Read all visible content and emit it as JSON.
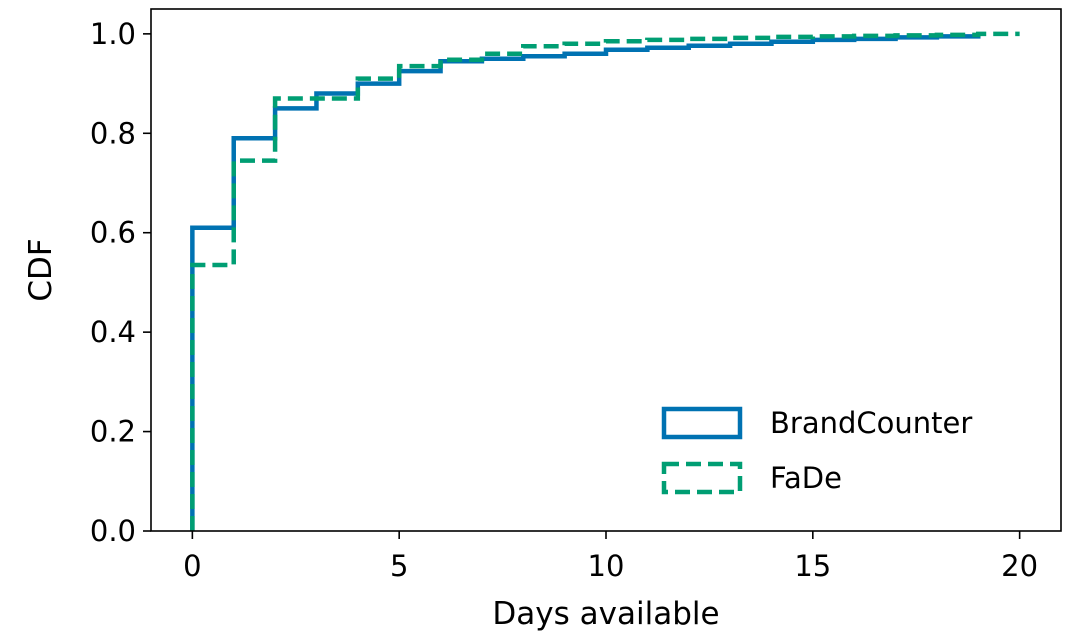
{
  "chart_data": {
    "type": "line",
    "step": true,
    "xlabel": "Days available",
    "ylabel": "CDF",
    "xlim": [
      -1,
      21
    ],
    "ylim": [
      0,
      1.05
    ],
    "xticks": [
      0,
      5,
      10,
      15,
      20
    ],
    "yticks": [
      0.0,
      0.2,
      0.4,
      0.6,
      0.8,
      1.0
    ],
    "xtick_labels": [
      "0",
      "5",
      "10",
      "15",
      "20"
    ],
    "ytick_labels": [
      "0.0",
      "0.2",
      "0.4",
      "0.6",
      "0.8",
      "1.0"
    ],
    "grid": false,
    "legend_position": "lower-right",
    "series": [
      {
        "name": "BrandCounter",
        "color": "#0072B2",
        "dash": "solid",
        "x": [
          0,
          0,
          1,
          2,
          3,
          4,
          5,
          6,
          7,
          8,
          9,
          10,
          11,
          12,
          13,
          14,
          15,
          16,
          17,
          18,
          19
        ],
        "y": [
          0.0,
          0.61,
          0.79,
          0.85,
          0.88,
          0.9,
          0.925,
          0.945,
          0.95,
          0.955,
          0.96,
          0.968,
          0.972,
          0.976,
          0.98,
          0.984,
          0.988,
          0.99,
          0.993,
          0.995,
          1.0
        ]
      },
      {
        "name": "FaDe",
        "color": "#009E73",
        "dash": "dashed",
        "x": [
          0,
          0,
          1,
          2,
          3,
          4,
          5,
          6,
          7,
          8,
          9,
          10,
          11,
          12,
          13,
          14,
          15,
          16,
          17,
          18,
          19,
          20
        ],
        "y": [
          0.0,
          0.535,
          0.745,
          0.87,
          0.87,
          0.91,
          0.935,
          0.948,
          0.96,
          0.975,
          0.98,
          0.985,
          0.988,
          0.99,
          0.992,
          0.994,
          0.995,
          0.996,
          0.997,
          0.998,
          1.0,
          1.0
        ]
      }
    ]
  }
}
